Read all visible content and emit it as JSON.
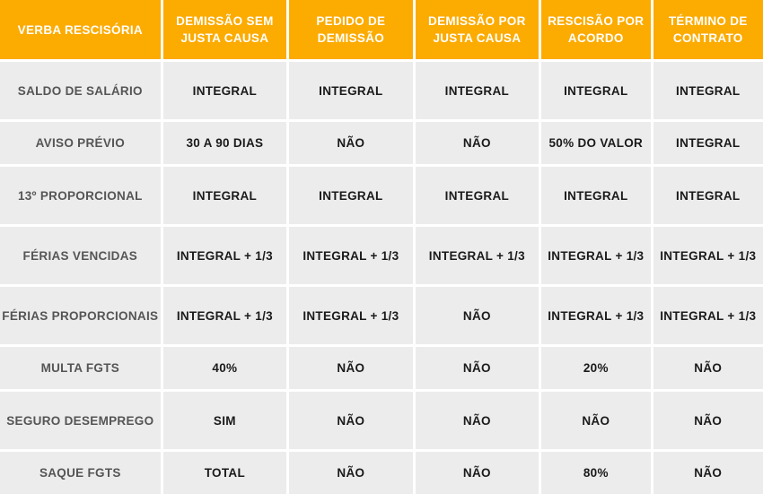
{
  "header": {
    "col0": "VERBA RESCISÓRIA",
    "col1": "DEMISSÃO SEM JUSTA CAUSA",
    "col2": "PEDIDO DE DEMISSÃO",
    "col3": "DEMISSÃO POR JUSTA CAUSA",
    "col4": "RESCISÃO POR ACORDO",
    "col5": "TÉRMINO DE CONTRATO"
  },
  "rows": [
    {
      "label": "SALDO DE SALÁRIO",
      "c1": "INTEGRAL",
      "c2": "INTEGRAL",
      "c3": "INTEGRAL",
      "c4": "INTEGRAL",
      "c5": "INTEGRAL"
    },
    {
      "label": "AVISO PRÉVIO",
      "c1": "30 A 90 DIAS",
      "c2": "NÃO",
      "c3": "NÃO",
      "c4": "50% DO VALOR",
      "c5": "INTEGRAL"
    },
    {
      "label": "13º PROPORCIONAL",
      "c1": "INTEGRAL",
      "c2": "INTEGRAL",
      "c3": "INTEGRAL",
      "c4": "INTEGRAL",
      "c5": "INTEGRAL"
    },
    {
      "label": "FÉRIAS VENCIDAS",
      "c1": "INTEGRAL + 1/3",
      "c2": "INTEGRAL + 1/3",
      "c3": "INTEGRAL + 1/3",
      "c4": "INTEGRAL + 1/3",
      "c5": "INTEGRAL + 1/3"
    },
    {
      "label": "FÉRIAS PROPORCIONAIS",
      "c1": "INTEGRAL + 1/3",
      "c2": "INTEGRAL + 1/3",
      "c3": "NÃO",
      "c4": "INTEGRAL + 1/3",
      "c5": "INTEGRAL + 1/3"
    },
    {
      "label": "MULTA FGTS",
      "c1": "40%",
      "c2": "NÃO",
      "c3": "NÃO",
      "c4": "20%",
      "c5": "NÃO"
    },
    {
      "label": "SEGURO DESEMPREGO",
      "c1": "SIM",
      "c2": "NÃO",
      "c3": "NÃO",
      "c4": "NÃO",
      "c5": "NÃO"
    },
    {
      "label": "SAQUE FGTS",
      "c1": "TOTAL",
      "c2": "NÃO",
      "c3": "NÃO",
      "c4": "80%",
      "c5": "NÃO"
    }
  ]
}
